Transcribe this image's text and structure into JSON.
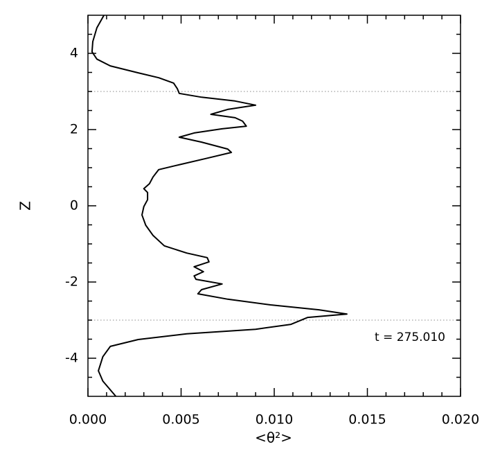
{
  "chart_data": {
    "type": "line",
    "xlabel": "<θ²>",
    "ylabel": "Z",
    "annotation": "t = 275.010",
    "series": [
      {
        "color": "#000000",
        "z": [
          5,
          4.67,
          4.31,
          4.04,
          3.85,
          3.67,
          3.49,
          3.36,
          3.22,
          3.07,
          2.95,
          2.85,
          2.75,
          2.64,
          2.53,
          2.4,
          2.31,
          2.22,
          2.09,
          2.02,
          1.91,
          1.8,
          1.67,
          1.49,
          1.4,
          1.25,
          1.09,
          0.95,
          0.76,
          0.58,
          0.45,
          0.35,
          0.16,
          -0.02,
          -0.24,
          -0.51,
          -0.78,
          -1.05,
          -1.24,
          -1.36,
          -1.47,
          -1.6,
          -1.73,
          -1.84,
          -1.93,
          -2.05,
          -2.2,
          -2.31,
          -2.45,
          -2.6,
          -2.73,
          -2.84,
          -2.93,
          -3.11,
          -3.24,
          -3.36,
          -3.51,
          -3.69,
          -3.96,
          -4.33,
          -4.6,
          -5
        ],
        "values": [
          0.00086,
          0.00048,
          0.00026,
          0.00022,
          0.00048,
          0.0012,
          0.0027,
          0.0038,
          0.0046,
          0.0048,
          0.0049,
          0.0061,
          0.0079,
          0.009,
          0.0075,
          0.0066,
          0.0079,
          0.0083,
          0.0085,
          0.0072,
          0.0057,
          0.0049,
          0.0061,
          0.0075,
          0.0077,
          0.0064,
          0.005,
          0.0038,
          0.0035,
          0.0033,
          0.003,
          0.0032,
          0.0032,
          0.003,
          0.0029,
          0.0031,
          0.0035,
          0.0041,
          0.0053,
          0.0064,
          0.0065,
          0.0057,
          0.0062,
          0.0057,
          0.0058,
          0.0072,
          0.0061,
          0.0059,
          0.0075,
          0.0098,
          0.0124,
          0.0139,
          0.0118,
          0.0109,
          0.009,
          0.0053,
          0.0027,
          0.0012,
          0.0008,
          0.00056,
          0.0008,
          0.0015
        ]
      }
    ],
    "xlim": [
      0,
      0.02
    ],
    "xticks": [
      {
        "value": 0,
        "label": "0.000"
      },
      {
        "value": 0.005,
        "label": "0.005"
      },
      {
        "value": 0.01,
        "label": "0.010"
      },
      {
        "value": 0.015,
        "label": "0.015"
      },
      {
        "value": 0.02,
        "label": "0.020"
      }
    ],
    "xminor_ticks": [
      0.001,
      0.002,
      0.003,
      0.004,
      0.006,
      0.007,
      0.008,
      0.009,
      0.011,
      0.012,
      0.013,
      0.014,
      0.016,
      0.017,
      0.018,
      0.019
    ],
    "ylim": [
      -5,
      5
    ],
    "yticks": [
      -4,
      -2,
      0,
      2,
      4
    ],
    "yminor_ticks": [
      -4.5,
      -3.5,
      -3,
      -2.5,
      -1.5,
      -1,
      -0.5,
      0.5,
      1,
      1.5,
      2.5,
      3,
      3.5,
      4.5
    ],
    "reference_lines": {
      "x": [
        0
      ],
      "y": [
        3,
        -3
      ]
    }
  }
}
